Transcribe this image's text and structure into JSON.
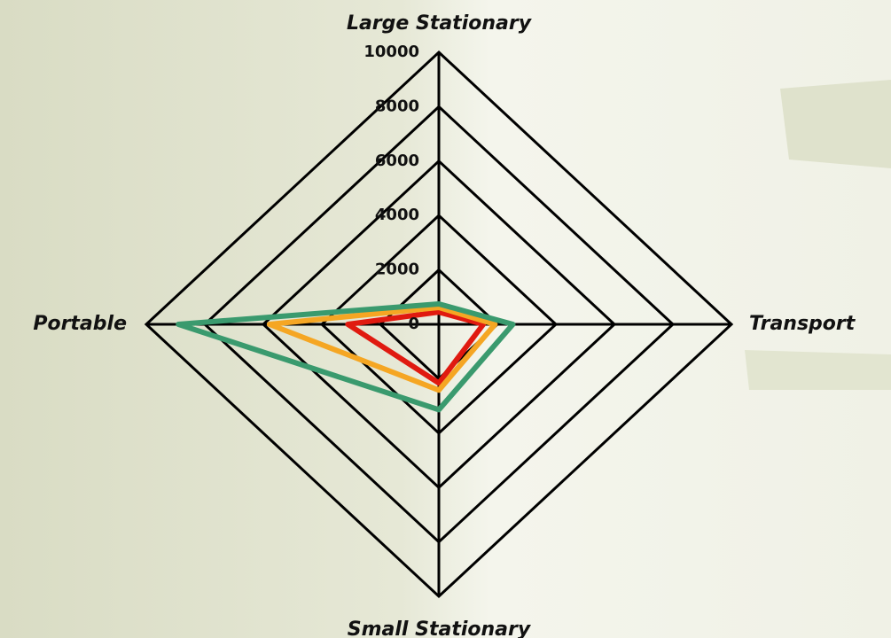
{
  "chart_data": {
    "type": "radar",
    "categories": [
      "Large Stationary",
      "Transport",
      "Small Stationary",
      "Portable"
    ],
    "series": [
      {
        "color": "#e01a10",
        "values": [
          450,
          1520,
          2160,
          3110
        ]
      },
      {
        "color": "#f5a623",
        "values": [
          620,
          1920,
          2420,
          5790
        ]
      },
      {
        "color": "#3a9a6e",
        "values": [
          750,
          2530,
          3140,
          8900
        ]
      }
    ],
    "rlim": [
      0,
      10000
    ],
    "rticks": [
      0,
      2000,
      4000,
      6000,
      8000,
      10000
    ]
  }
}
